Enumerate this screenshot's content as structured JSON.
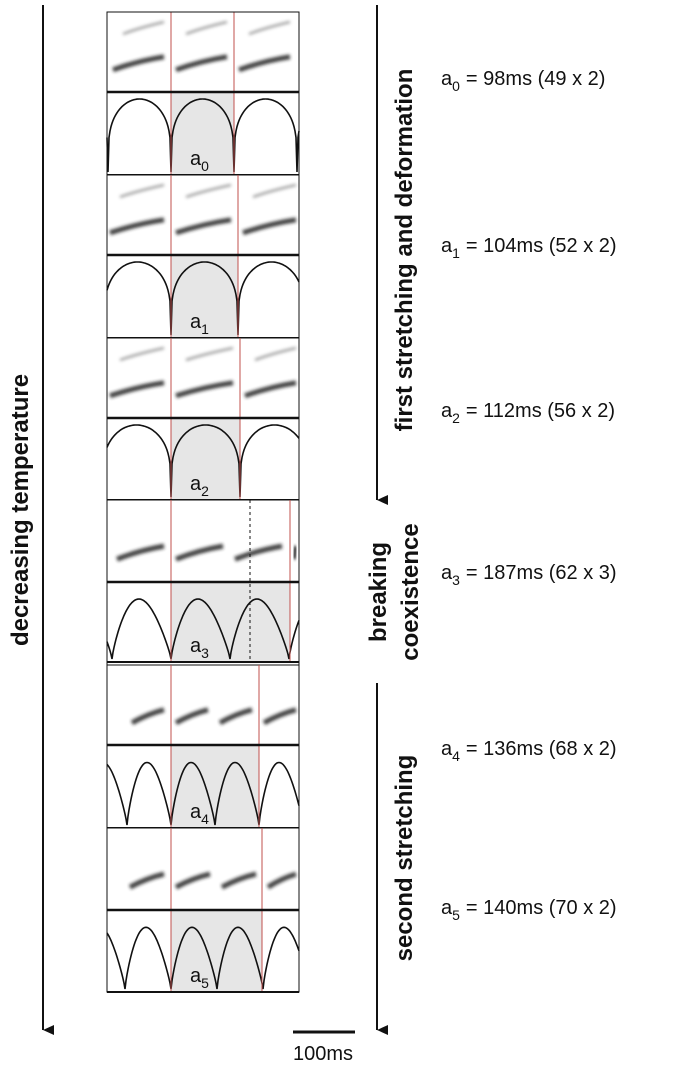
{
  "left_axis": {
    "label": "decreasing temperature"
  },
  "phases": {
    "first": "first stretching and deformation",
    "breaking": [
      "breaking",
      "coexistence"
    ],
    "second": "second stretching"
  },
  "panels": [
    {
      "name": "a",
      "sub": "0",
      "period": "= 98ms (49 x 2)"
    },
    {
      "name": "a",
      "sub": "1",
      "period": "= 104ms (52 x 2)"
    },
    {
      "name": "a",
      "sub": "2",
      "period": "= 112ms (56 x 2)"
    },
    {
      "name": "a",
      "sub": "3",
      "period": "= 187ms (62 x 3)"
    },
    {
      "name": "a",
      "sub": "4",
      "period": "= 136ms (68 x 2)"
    },
    {
      "name": "a",
      "sub": "5",
      "period": "= 140ms (70 x 2)"
    }
  ],
  "scale_bar": "100ms"
}
